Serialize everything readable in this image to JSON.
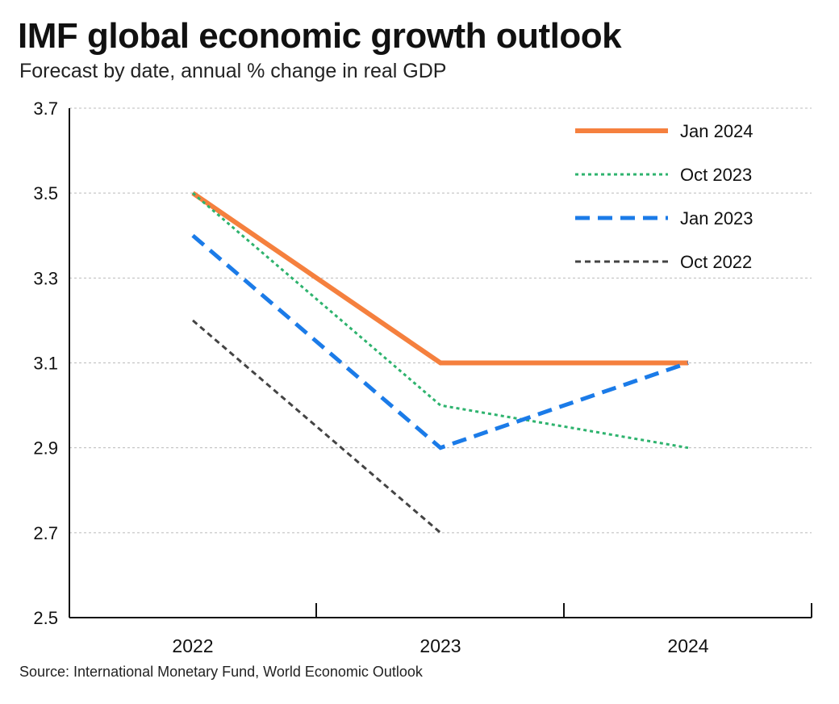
{
  "chart_data": {
    "type": "line",
    "title": "IMF global economic growth outlook",
    "subtitle": "Forecast by date, annual % change in real GDP",
    "source": "Source: International Monetary Fund, World Economic Outlook",
    "categories": [
      "2022",
      "2023",
      "2024"
    ],
    "ylim": [
      2.5,
      3.7
    ],
    "yticks": [
      "2.5",
      "2.7",
      "2.9",
      "3.1",
      "3.3",
      "3.5",
      "3.7"
    ],
    "grid": true,
    "legend_position": "top-right",
    "series": [
      {
        "name": "Jan 2024",
        "values": [
          3.5,
          3.1,
          3.1
        ],
        "color": "#f5803e",
        "style": "solid"
      },
      {
        "name": "Oct 2023",
        "values": [
          3.5,
          3.0,
          2.9
        ],
        "color": "#2eb36e",
        "style": "dotted"
      },
      {
        "name": "Jan 2023",
        "values": [
          3.4,
          2.9,
          3.1
        ],
        "color": "#1b7be8",
        "style": "dashed"
      },
      {
        "name": "Oct 2022",
        "values": [
          3.2,
          2.7,
          null
        ],
        "color": "#444444",
        "style": "dashed-thin"
      }
    ]
  }
}
